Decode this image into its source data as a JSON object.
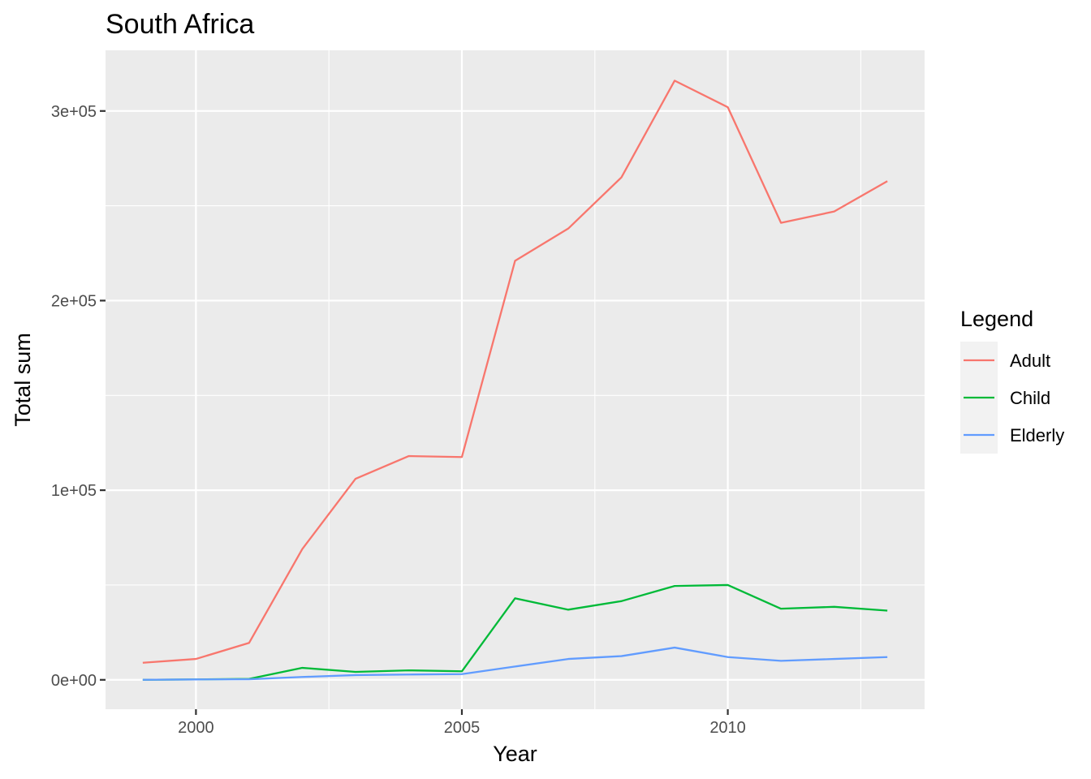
{
  "chart_data": {
    "type": "line",
    "title": "South Africa",
    "xlabel": "Year",
    "ylabel": "Total sum",
    "legend_title": "Legend",
    "legend_position": "right",
    "grid": true,
    "xlim": [
      1998.3,
      2013.7
    ],
    "ylim": [
      -15500,
      332000
    ],
    "x_ticks": [
      2000,
      2005,
      2010
    ],
    "x_tick_labels": [
      "2000",
      "2005",
      "2010"
    ],
    "y_ticks": [
      0,
      100000,
      200000,
      300000
    ],
    "y_tick_labels": [
      "0e+00",
      "1e+05",
      "2e+05",
      "3e+05"
    ],
    "x": [
      1999,
      2000,
      2001,
      2002,
      2003,
      2004,
      2005,
      2006,
      2007,
      2008,
      2009,
      2010,
      2011,
      2012,
      2013
    ],
    "series": [
      {
        "name": "Adult",
        "color": "#F8766D",
        "values": [
          9000,
          11000,
          19500,
          69000,
          106000,
          118000,
          117500,
          221000,
          238000,
          265000,
          316000,
          302000,
          241000,
          247000,
          263000
        ]
      },
      {
        "name": "Child",
        "color": "#00BA38",
        "values": [
          0,
          200,
          500,
          6300,
          4200,
          5000,
          4500,
          43000,
          37000,
          41500,
          49500,
          50000,
          37500,
          38500,
          36500
        ]
      },
      {
        "name": "Elderly",
        "color": "#619CFF",
        "values": [
          0,
          200,
          300,
          1500,
          2500,
          2800,
          3000,
          7000,
          11000,
          12500,
          17000,
          12000,
          10000,
          11000,
          12000
        ]
      }
    ]
  }
}
